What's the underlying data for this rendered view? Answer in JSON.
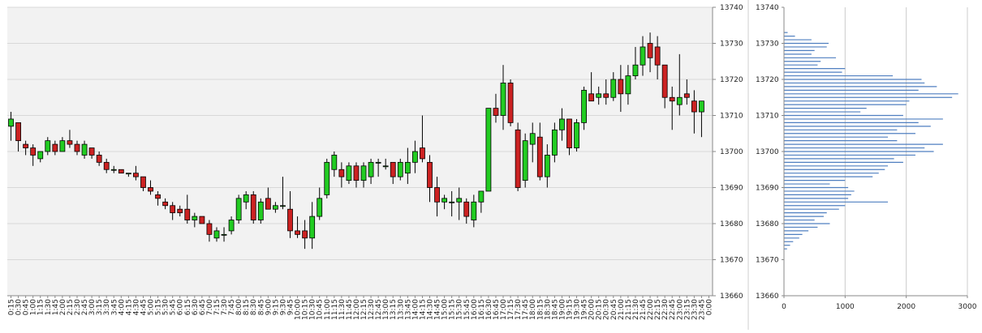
{
  "chart_data": [
    {
      "type": "candlestick",
      "title": "",
      "xlabel": "",
      "ylabel": "",
      "ylim": [
        13660,
        13740
      ],
      "yticks": [
        13660,
        13670,
        13680,
        13690,
        13700,
        13710,
        13720,
        13730,
        13740
      ],
      "x_tick_labels": [
        "0:15",
        "0:30",
        "0:45",
        "1:00",
        "1:15",
        "1:30",
        "1:45",
        "2:00",
        "2:15",
        "2:30",
        "2:45",
        "3:00",
        "3:15",
        "3:30",
        "3:45",
        "4:00",
        "4:15",
        "4:30",
        "4:45",
        "5:00",
        "5:15",
        "5:30",
        "5:45",
        "6:00",
        "6:15",
        "6:30",
        "6:45",
        "7:00",
        "7:15",
        "7:30",
        "7:45",
        "8:00",
        "8:15",
        "8:30",
        "8:45",
        "9:00",
        "9:15",
        "9:30",
        "9:45",
        "10:00",
        "10:15",
        "10:30",
        "10:45",
        "11:00",
        "11:15",
        "11:30",
        "11:45",
        "12:00",
        "12:15",
        "12:30",
        "12:45",
        "13:00",
        "13:15",
        "13:30",
        "13:45",
        "14:00",
        "14:15",
        "14:30",
        "14:45",
        "15:00",
        "15:15",
        "15:30",
        "15:45",
        "16:00",
        "16:15",
        "16:30",
        "16:45",
        "17:00",
        "17:15",
        "17:30",
        "17:45",
        "18:00",
        "18:15",
        "18:30",
        "18:45",
        "19:00",
        "19:15",
        "19:30",
        "19:45",
        "20:00",
        "20:15",
        "20:30",
        "20:45",
        "21:00",
        "21:15",
        "21:30",
        "21:45",
        "22:00",
        "22:15",
        "22:30",
        "22:45",
        "23:00",
        "23:15",
        "23:30",
        "23:45",
        "0:00"
      ],
      "grid": true,
      "colors": {
        "up": "#22cc22",
        "down": "#cc2222",
        "volume": "#4f7fc0",
        "plot_bg": "#f2f2f2",
        "grid": "#d8d8d8"
      },
      "candles": [
        {
          "x": "0:15",
          "o": 13707,
          "h": 13711,
          "l": 13703,
          "c": 13709
        },
        {
          "x": "0:30",
          "o": 13708,
          "h": 13708,
          "l": 13700,
          "c": 13703
        },
        {
          "x": "0:45",
          "o": 13702,
          "h": 13703,
          "l": 13699,
          "c": 13701
        },
        {
          "x": "1:00",
          "o": 13701,
          "h": 13702,
          "l": 13696,
          "c": 13699
        },
        {
          "x": "1:15",
          "o": 13698,
          "h": 13700,
          "l": 13697,
          "c": 13700
        },
        {
          "x": "1:30",
          "o": 13700,
          "h": 13704,
          "l": 13699,
          "c": 13703
        },
        {
          "x": "1:45",
          "o": 13702,
          "h": 13703,
          "l": 13699,
          "c": 13700
        },
        {
          "x": "2:00",
          "o": 13700,
          "h": 13704,
          "l": 13700,
          "c": 13703
        },
        {
          "x": "2:15",
          "o": 13703,
          "h": 13706,
          "l": 13701,
          "c": 13702
        },
        {
          "x": "2:30",
          "o": 13702,
          "h": 13703,
          "l": 13699,
          "c": 13700
        },
        {
          "x": "2:45",
          "o": 13699,
          "h": 13703,
          "l": 13698,
          "c": 13702
        },
        {
          "x": "3:00",
          "o": 13701,
          "h": 13701,
          "l": 13698,
          "c": 13699
        },
        {
          "x": "3:15",
          "o": 13699,
          "h": 13700,
          "l": 13696,
          "c": 13697
        },
        {
          "x": "3:30",
          "o": 13697,
          "h": 13698,
          "l": 13694,
          "c": 13695
        },
        {
          "x": "3:45",
          "o": 13695,
          "h": 13696,
          "l": 13694,
          "c": 13695
        },
        {
          "x": "4:00",
          "o": 13695,
          "h": 13695,
          "l": 13694,
          "c": 13694
        },
        {
          "x": "4:15",
          "o": 13694,
          "h": 13694,
          "l": 13693,
          "c": 13694
        },
        {
          "x": "4:30",
          "o": 13694,
          "h": 13696,
          "l": 13692,
          "c": 13693
        },
        {
          "x": "4:45",
          "o": 13693,
          "h": 13693,
          "l": 13689,
          "c": 13690
        },
        {
          "x": "5:00",
          "o": 13690,
          "h": 13692,
          "l": 13688,
          "c": 13689
        },
        {
          "x": "5:15",
          "o": 13688,
          "h": 13689,
          "l": 13685,
          "c": 13687
        },
        {
          "x": "5:30",
          "o": 13686,
          "h": 13687,
          "l": 13684,
          "c": 13685
        },
        {
          "x": "5:45",
          "o": 13685,
          "h": 13686,
          "l": 13681,
          "c": 13683
        },
        {
          "x": "6:00",
          "o": 13684,
          "h": 13685,
          "l": 13682,
          "c": 13683
        },
        {
          "x": "6:15",
          "o": 13684,
          "h": 13688,
          "l": 13680,
          "c": 13681
        },
        {
          "x": "6:30",
          "o": 13681,
          "h": 13683,
          "l": 13679,
          "c": 13682
        },
        {
          "x": "6:45",
          "o": 13682,
          "h": 13682,
          "l": 13680,
          "c": 13680
        },
        {
          "x": "7:00",
          "o": 13680,
          "h": 13681,
          "l": 13675,
          "c": 13677
        },
        {
          "x": "7:15",
          "o": 13676,
          "h": 13679,
          "l": 13675,
          "c": 13678
        },
        {
          "x": "7:30",
          "o": 13677,
          "h": 13679,
          "l": 13675,
          "c": 13677
        },
        {
          "x": "7:45",
          "o": 13678,
          "h": 13682,
          "l": 13677,
          "c": 13681
        },
        {
          "x": "8:00",
          "o": 13681,
          "h": 13688,
          "l": 13680,
          "c": 13687
        },
        {
          "x": "8:15",
          "o": 13686,
          "h": 13689,
          "l": 13684,
          "c": 13688
        },
        {
          "x": "8:30",
          "o": 13688,
          "h": 13689,
          "l": 13680,
          "c": 13681
        },
        {
          "x": "8:45",
          "o": 13681,
          "h": 13687,
          "l": 13680,
          "c": 13686
        },
        {
          "x": "9:00",
          "o": 13687,
          "h": 13690,
          "l": 13684,
          "c": 13684
        },
        {
          "x": "9:15",
          "o": 13684,
          "h": 13686,
          "l": 13683,
          "c": 13685
        },
        {
          "x": "9:30",
          "o": 13685,
          "h": 13693,
          "l": 13684,
          "c": 13685
        },
        {
          "x": "9:45",
          "o": 13684,
          "h": 13689,
          "l": 13676,
          "c": 13678
        },
        {
          "x": "10:00",
          "o": 13678,
          "h": 13682,
          "l": 13676,
          "c": 13677
        },
        {
          "x": "10:15",
          "o": 13678,
          "h": 13681,
          "l": 13673,
          "c": 13676
        },
        {
          "x": "10:30",
          "o": 13676,
          "h": 13686,
          "l": 13673,
          "c": 13682
        },
        {
          "x": "10:45",
          "o": 13682,
          "h": 13690,
          "l": 13681,
          "c": 13687
        },
        {
          "x": "11:00",
          "o": 13688,
          "h": 13698,
          "l": 13687,
          "c": 13697
        },
        {
          "x": "11:15",
          "o": 13695,
          "h": 13700,
          "l": 13693,
          "c": 13699
        },
        {
          "x": "11:30",
          "o": 13695,
          "h": 13697,
          "l": 13690,
          "c": 13693
        },
        {
          "x": "11:45",
          "o": 13692,
          "h": 13697,
          "l": 13691,
          "c": 13696
        },
        {
          "x": "12:00",
          "o": 13696,
          "h": 13697,
          "l": 13690,
          "c": 13692
        },
        {
          "x": "12:15",
          "o": 13692,
          "h": 13697,
          "l": 13690,
          "c": 13696
        },
        {
          "x": "12:30",
          "o": 13693,
          "h": 13698,
          "l": 13691,
          "c": 13697
        },
        {
          "x": "12:45",
          "o": 13697,
          "h": 13698,
          "l": 13693,
          "c": 13697
        },
        {
          "x": "13:00",
          "o": 13696,
          "h": 13698,
          "l": 13695,
          "c": 13696
        },
        {
          "x": "13:15",
          "o": 13697,
          "h": 13697,
          "l": 13691,
          "c": 13693
        },
        {
          "x": "13:30",
          "o": 13693,
          "h": 13698,
          "l": 13692,
          "c": 13697
        },
        {
          "x": "13:45",
          "o": 13694,
          "h": 13701,
          "l": 13691,
          "c": 13697
        },
        {
          "x": "14:00",
          "o": 13697,
          "h": 13703,
          "l": 13694,
          "c": 13700
        },
        {
          "x": "14:15",
          "o": 13701,
          "h": 13710,
          "l": 13697,
          "c": 13698
        },
        {
          "x": "14:30",
          "o": 13697,
          "h": 13699,
          "l": 13686,
          "c": 13690
        },
        {
          "x": "14:45",
          "o": 13690,
          "h": 13693,
          "l": 13682,
          "c": 13686
        },
        {
          "x": "15:00",
          "o": 13686,
          "h": 13688,
          "l": 13684,
          "c": 13687
        },
        {
          "x": "15:15",
          "o": 13686,
          "h": 13689,
          "l": 13682,
          "c": 13686
        },
        {
          "x": "15:30",
          "o": 13686,
          "h": 13690,
          "l": 13681,
          "c": 13687
        },
        {
          "x": "15:45",
          "o": 13686,
          "h": 13687,
          "l": 13680,
          "c": 13682
        },
        {
          "x": "16:00",
          "o": 13681,
          "h": 13688,
          "l": 13679,
          "c": 13686
        },
        {
          "x": "16:15",
          "o": 13686,
          "h": 13689,
          "l": 13683,
          "c": 13689
        },
        {
          "x": "16:30",
          "o": 13689,
          "h": 13712,
          "l": 13689,
          "c": 13712
        },
        {
          "x": "16:45",
          "o": 13712,
          "h": 13716,
          "l": 13708,
          "c": 13710
        },
        {
          "x": "17:00",
          "o": 13710,
          "h": 13724,
          "l": 13706,
          "c": 13719
        },
        {
          "x": "17:15",
          "o": 13719,
          "h": 13720,
          "l": 13707,
          "c": 13708
        },
        {
          "x": "17:30",
          "o": 13706,
          "h": 13708,
          "l": 13689,
          "c": 13690
        },
        {
          "x": "17:45",
          "o": 13692,
          "h": 13705,
          "l": 13690,
          "c": 13703
        },
        {
          "x": "18:00",
          "o": 13702,
          "h": 13708,
          "l": 13697,
          "c": 13705
        },
        {
          "x": "18:15",
          "o": 13704,
          "h": 13708,
          "l": 13692,
          "c": 13693
        },
        {
          "x": "18:30",
          "o": 13693,
          "h": 13702,
          "l": 13690,
          "c": 13699
        },
        {
          "x": "18:45",
          "o": 13699,
          "h": 13708,
          "l": 13697,
          "c": 13706
        },
        {
          "x": "19:00",
          "o": 13706,
          "h": 13712,
          "l": 13703,
          "c": 13709
        },
        {
          "x": "19:15",
          "o": 13709,
          "h": 13709,
          "l": 13699,
          "c": 13701
        },
        {
          "x": "19:30",
          "o": 13701,
          "h": 13709,
          "l": 13700,
          "c": 13708
        },
        {
          "x": "19:45",
          "o": 13708,
          "h": 13718,
          "l": 13706,
          "c": 13717
        },
        {
          "x": "20:00",
          "o": 13716,
          "h": 13722,
          "l": 13714,
          "c": 13714
        },
        {
          "x": "20:15",
          "o": 13715,
          "h": 13718,
          "l": 13713,
          "c": 13716
        },
        {
          "x": "20:30",
          "o": 13716,
          "h": 13720,
          "l": 13713,
          "c": 13715
        },
        {
          "x": "20:45",
          "o": 13715,
          "h": 13722,
          "l": 13714,
          "c": 13720
        },
        {
          "x": "21:00",
          "o": 13720,
          "h": 13724,
          "l": 13711,
          "c": 13716
        },
        {
          "x": "21:15",
          "o": 13716,
          "h": 13724,
          "l": 13713,
          "c": 13721
        },
        {
          "x": "21:30",
          "o": 13721,
          "h": 13729,
          "l": 13720,
          "c": 13724
        },
        {
          "x": "21:45",
          "o": 13724,
          "h": 13732,
          "l": 13721,
          "c": 13729
        },
        {
          "x": "22:00",
          "o": 13730,
          "h": 13733,
          "l": 13722,
          "c": 13726
        },
        {
          "x": "22:15",
          "o": 13729,
          "h": 13732,
          "l": 13720,
          "c": 13724
        },
        {
          "x": "22:30",
          "o": 13724,
          "h": 13724,
          "l": 13712,
          "c": 13715
        },
        {
          "x": "22:45",
          "o": 13715,
          "h": 13718,
          "l": 13706,
          "c": 13714
        },
        {
          "x": "23:00",
          "o": 13713,
          "h": 13727,
          "l": 13710,
          "c": 13715
        },
        {
          "x": "23:15",
          "o": 13716,
          "h": 13720,
          "l": 13713,
          "c": 13715
        },
        {
          "x": "23:30",
          "o": 13714,
          "h": 13717,
          "l": 13705,
          "c": 13711
        },
        {
          "x": "23:45",
          "o": 13711,
          "h": 13714,
          "l": 13704,
          "c": 13714
        }
      ],
      "volume": [
        0,
        0,
        0,
        0,
        0,
        0,
        0,
        0,
        0,
        0,
        0,
        0,
        0,
        0,
        0,
        0,
        0,
        0,
        0,
        0,
        0,
        0,
        0,
        0,
        0,
        0,
        0,
        0,
        0,
        0,
        0,
        0,
        0,
        0,
        0,
        0,
        0,
        0,
        0,
        0,
        0,
        0,
        0,
        0,
        0,
        0,
        0,
        0,
        0,
        0,
        0,
        0,
        0,
        0,
        0,
        0,
        0,
        0,
        0,
        0,
        0,
        0,
        0,
        0,
        0,
        0,
        0,
        0,
        0,
        0,
        0,
        0,
        0,
        0,
        0,
        0,
        0,
        0,
        0,
        0,
        0,
        0,
        0,
        0,
        0,
        0,
        0,
        0,
        0,
        0,
        0,
        0,
        0,
        0,
        0,
        0,
        0
      ]
    },
    {
      "type": "horizontal-bar",
      "title": "",
      "xlabel": "",
      "ylabel": "",
      "xlim": [
        0,
        3000
      ],
      "xticks": [
        0,
        1000,
        2000,
        3000
      ],
      "ylim": [
        13660,
        13740
      ],
      "yticks": [
        13660,
        13670,
        13680,
        13690,
        13700,
        13710,
        13720,
        13730,
        13740
      ],
      "grid": true,
      "levels": [
        13733,
        13732,
        13731,
        13730,
        13729,
        13728,
        13727,
        13726,
        13725,
        13724,
        13723,
        13722,
        13721,
        13720,
        13719,
        13718,
        13717,
        13716,
        13715,
        13714,
        13713,
        13712,
        13711,
        13710,
        13709,
        13708,
        13707,
        13706,
        13705,
        13704,
        13703,
        13702,
        13701,
        13700,
        13699,
        13698,
        13697,
        13696,
        13695,
        13694,
        13693,
        13692,
        13691,
        13690,
        13689,
        13688,
        13687,
        13686,
        13685,
        13684,
        13683,
        13682,
        13681,
        13680,
        13679,
        13678,
        13677,
        13676,
        13675,
        13674,
        13673
      ],
      "values": [
        60,
        180,
        450,
        730,
        700,
        500,
        450,
        850,
        600,
        550,
        1000,
        950,
        1780,
        2250,
        2300,
        2500,
        2200,
        2850,
        2750,
        2050,
        2000,
        1350,
        1250,
        1950,
        2600,
        2200,
        2400,
        1850,
        2150,
        1700,
        1850,
        2600,
        2300,
        2450,
        2150,
        1800,
        1950,
        1700,
        1650,
        1550,
        1450,
        1000,
        750,
        1050,
        1150,
        1100,
        1050,
        1700,
        1000,
        900,
        700,
        650,
        500,
        750,
        550,
        400,
        300,
        250,
        150,
        100,
        50
      ]
    }
  ]
}
